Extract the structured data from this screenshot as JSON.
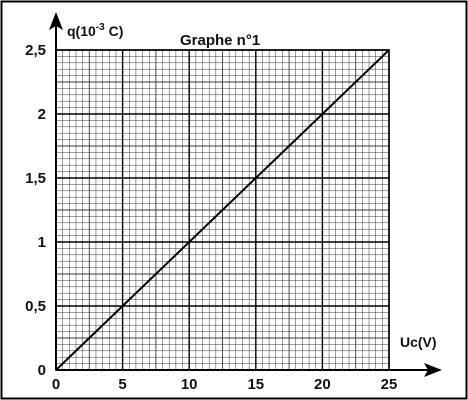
{
  "chart_data": {
    "type": "line",
    "title": "Graphe n°1",
    "xlabel": "Uc(V)",
    "ylabel_main": "q(10",
    "ylabel_exp": "-3",
    "ylabel_unit": " C)",
    "xlim": [
      0,
      25
    ],
    "ylim": [
      0,
      2.5
    ],
    "x_ticks": [
      0,
      5,
      10,
      15,
      20,
      25
    ],
    "x_tick_labels": [
      "0",
      "5",
      "10",
      "15",
      "20",
      "25"
    ],
    "y_ticks": [
      0,
      0.5,
      1,
      1.5,
      2,
      2.5
    ],
    "y_tick_labels": [
      "0",
      "0,5",
      "1",
      "1,5",
      "2",
      "2,5"
    ],
    "grid": "millimetre",
    "series": [
      {
        "x": [
          0,
          25
        ],
        "y": [
          0,
          2.5
        ]
      }
    ],
    "colors": {
      "line": "#000000",
      "grid_minor": "#3a3a3a",
      "grid_major": "#000000",
      "frame": "#000000"
    }
  }
}
